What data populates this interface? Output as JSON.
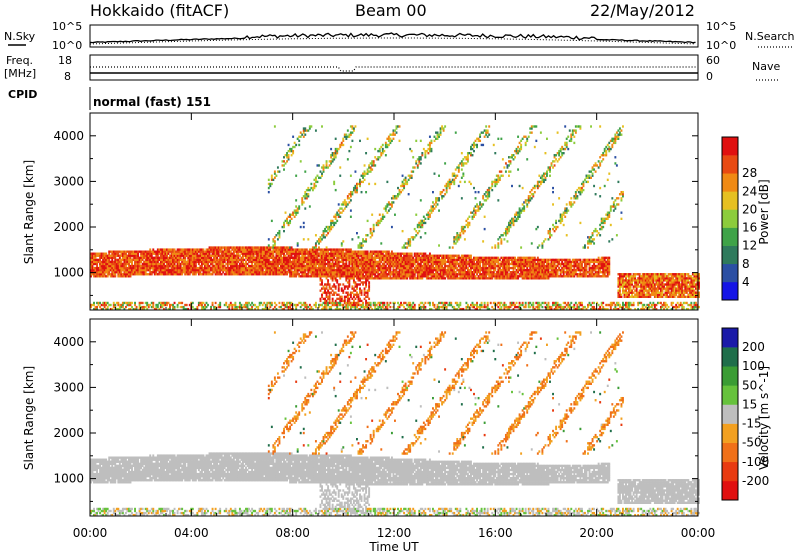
{
  "header": {
    "station": "Hokkaido (fitACF)",
    "beam": "Beam 00",
    "date": "22/May/2012"
  },
  "strips": {
    "nsky_label": "N.Sky",
    "nsky_ticks": [
      "10^5",
      "10^0"
    ],
    "nsearch_label": "N.Search",
    "nsearch_ticks": [
      "10^5",
      "10^0"
    ],
    "freq_label_line1": "Freq.",
    "freq_label_line2": "[MHz]",
    "freq_ticks": [
      "18",
      "8"
    ],
    "nave_label": "Nave",
    "nave_ticks": [
      "60",
      "0"
    ],
    "cpid_label": "CPID",
    "cpid_text": "normal (fast) 151"
  },
  "axes": {
    "ylabel": "Slant Range [km]",
    "xlabel": "Time UT",
    "x_ticks": [
      "00:00",
      "04:00",
      "08:00",
      "12:00",
      "16:00",
      "20:00",
      "00:00"
    ],
    "y_ticks": [
      "1000",
      "2000",
      "3000",
      "4000"
    ]
  },
  "power_colorbar": {
    "label": "Power [dB]",
    "ticks": [
      "4",
      "8",
      "12",
      "16",
      "20",
      "24",
      "28"
    ],
    "colors": [
      "#1414e6",
      "#2b4fa3",
      "#2f7a5c",
      "#3fa348",
      "#8ccc3c",
      "#e6c021",
      "#f08a14",
      "#e84a12",
      "#e01010"
    ]
  },
  "velocity_colorbar": {
    "label": "Velocity [m s^-1]",
    "ticks": [
      "200",
      "100",
      "50",
      "15",
      "-15",
      "-50",
      "-100",
      "-200"
    ],
    "colors": [
      "#1a1aa8",
      "#1f6e4a",
      "#3a9c34",
      "#66c23c",
      "#bebebe",
      "#f2a020",
      "#f07018",
      "#e83a10",
      "#e01010"
    ]
  },
  "chart_data": [
    {
      "type": "heatmap",
      "title": "Power",
      "xlabel": "Time UT",
      "ylabel": "Slant Range [km]",
      "x_range": [
        "00:00",
        "24:00"
      ],
      "ylim": [
        180,
        4500
      ],
      "value_label": "Power [dB]",
      "value_range": [
        0,
        30
      ],
      "features": [
        {
          "name": "main band",
          "t_start": 0,
          "t_end": 20.5,
          "range_low": 900,
          "range_high": 1450,
          "power_db": 26
        },
        {
          "name": "late low band",
          "t_start": 21,
          "t_end": 24,
          "range_low": 500,
          "range_high": 950,
          "power_db": 24
        },
        {
          "name": "scattered high-range echoes",
          "t_start": 7,
          "t_end": 21,
          "range_low": 1500,
          "range_high": 4200,
          "power_db": 14
        }
      ]
    },
    {
      "type": "heatmap",
      "title": "Velocity",
      "xlabel": "Time UT",
      "ylabel": "Slant Range [km]",
      "x_range": [
        "00:00",
        "24:00"
      ],
      "ylim": [
        180,
        4500
      ],
      "value_label": "Velocity [m s^-1]",
      "value_range": [
        -200,
        200
      ],
      "features": [
        {
          "name": "main band (ground scatter)",
          "t_start": 0,
          "t_end": 20.5,
          "range_low": 900,
          "range_high": 1450,
          "velocity": 0
        },
        {
          "name": "high-range echoes",
          "t_start": 7,
          "t_end": 21,
          "range_low": 1500,
          "range_high": 4200,
          "velocity": -40
        }
      ]
    }
  ]
}
